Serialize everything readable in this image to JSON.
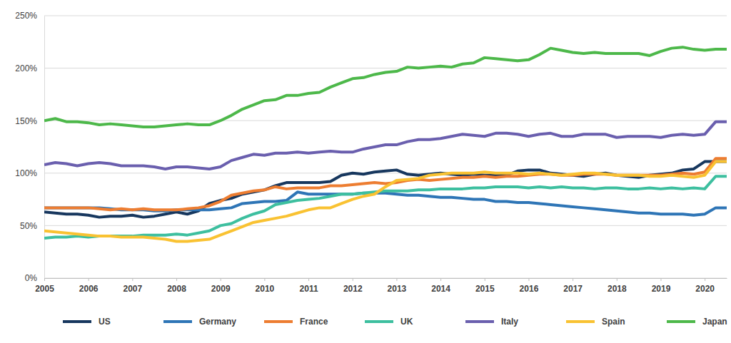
{
  "chart_data": {
    "type": "line",
    "x": [
      2005,
      2005.25,
      2005.5,
      2005.75,
      2006,
      2006.25,
      2006.5,
      2006.75,
      2007,
      2007.25,
      2007.5,
      2007.75,
      2008,
      2008.25,
      2008.5,
      2008.75,
      2009,
      2009.25,
      2009.5,
      2009.75,
      2010,
      2010.25,
      2010.5,
      2010.75,
      2011,
      2011.25,
      2011.5,
      2011.75,
      2012,
      2012.25,
      2012.5,
      2012.75,
      2013,
      2013.25,
      2013.5,
      2013.75,
      2014,
      2014.25,
      2014.5,
      2014.75,
      2015,
      2015.25,
      2015.5,
      2015.75,
      2016,
      2016.25,
      2016.5,
      2016.75,
      2017,
      2017.25,
      2017.5,
      2017.75,
      2018,
      2018.25,
      2018.5,
      2018.75,
      2019,
      2019.25,
      2019.5,
      2019.75,
      2020,
      2020.25,
      2020.5
    ],
    "series": [
      {
        "name": "US",
        "color": "#17375e",
        "values": [
          63,
          62,
          61,
          61,
          60,
          58,
          59,
          59,
          60,
          58,
          59,
          61,
          63,
          61,
          64,
          71,
          74,
          76,
          80,
          82,
          84,
          88,
          91,
          91,
          91,
          91,
          92,
          98,
          100,
          99,
          101,
          102,
          103,
          99,
          98,
          99,
          100,
          99,
          98,
          99,
          98,
          98,
          98,
          102,
          103,
          103,
          100,
          99,
          98,
          97,
          99,
          100,
          98,
          97,
          96,
          98,
          99,
          100,
          103,
          104,
          111,
          111,
          111
        ]
      },
      {
        "name": "Germany",
        "color": "#2e75b6",
        "values": [
          67,
          67,
          67,
          67,
          67,
          67,
          66,
          65,
          65,
          65,
          64,
          64,
          65,
          65,
          65,
          65,
          66,
          67,
          71,
          72,
          73,
          73,
          74,
          82,
          80,
          80,
          80,
          80,
          80,
          81,
          81,
          81,
          80,
          79,
          79,
          78,
          77,
          77,
          76,
          75,
          75,
          73,
          73,
          72,
          72,
          71,
          70,
          69,
          68,
          67,
          66,
          65,
          64,
          63,
          62,
          62,
          61,
          61,
          61,
          60,
          61,
          67,
          67
        ]
      },
      {
        "name": "France",
        "color": "#ed7d31",
        "values": [
          67,
          67,
          67,
          67,
          67,
          66,
          65,
          66,
          65,
          66,
          65,
          65,
          65,
          66,
          67,
          69,
          73,
          79,
          81,
          83,
          84,
          87,
          85,
          86,
          86,
          86,
          88,
          88,
          89,
          90,
          91,
          90,
          91,
          93,
          94,
          93,
          94,
          95,
          96,
          96,
          97,
          96,
          97,
          97,
          98,
          99,
          99,
          98,
          98,
          99,
          99,
          99,
          98,
          98,
          98,
          98,
          98,
          99,
          100,
          99,
          101,
          114,
          114
        ]
      },
      {
        "name": "UK",
        "color": "#3dbf9f",
        "values": [
          38,
          39,
          39,
          40,
          39,
          40,
          40,
          40,
          40,
          41,
          41,
          41,
          42,
          41,
          43,
          45,
          50,
          52,
          57,
          61,
          64,
          70,
          72,
          74,
          75,
          76,
          78,
          80,
          80,
          81,
          82,
          83,
          83,
          83,
          84,
          84,
          85,
          85,
          85,
          86,
          86,
          87,
          87,
          87,
          86,
          87,
          86,
          87,
          86,
          86,
          85,
          86,
          86,
          85,
          85,
          86,
          85,
          86,
          85,
          86,
          85,
          97,
          97
        ]
      },
      {
        "name": "Italy",
        "color": "#6a5fae",
        "values": [
          108,
          110,
          109,
          107,
          109,
          110,
          109,
          107,
          107,
          107,
          106,
          104,
          106,
          106,
          105,
          104,
          106,
          112,
          115,
          118,
          117,
          119,
          119,
          120,
          119,
          120,
          121,
          120,
          120,
          123,
          125,
          127,
          127,
          130,
          132,
          132,
          133,
          135,
          137,
          136,
          135,
          138,
          138,
          137,
          135,
          137,
          138,
          135,
          135,
          137,
          137,
          137,
          134,
          135,
          135,
          135,
          134,
          136,
          137,
          136,
          137,
          149,
          149
        ]
      },
      {
        "name": "Spain",
        "color": "#f9c232",
        "values": [
          45,
          44,
          43,
          42,
          41,
          40,
          40,
          39,
          39,
          39,
          38,
          37,
          35,
          35,
          36,
          37,
          41,
          45,
          49,
          53,
          55,
          57,
          59,
          62,
          65,
          67,
          67,
          71,
          75,
          78,
          80,
          87,
          93,
          94,
          95,
          98,
          99,
          100,
          100,
          100,
          101,
          100,
          100,
          100,
          99,
          100,
          99,
          98,
          99,
          100,
          100,
          99,
          98,
          98,
          98,
          97,
          97,
          98,
          97,
          96,
          98,
          111,
          111
        ]
      },
      {
        "name": "Japan",
        "color": "#4db84a",
        "values": [
          150,
          152,
          149,
          149,
          148,
          146,
          147,
          146,
          145,
          144,
          144,
          145,
          146,
          147,
          146,
          146,
          150,
          155,
          161,
          165,
          169,
          170,
          174,
          174,
          176,
          177,
          182,
          186,
          190,
          191,
          194,
          196,
          197,
          201,
          200,
          201,
          202,
          201,
          204,
          205,
          210,
          209,
          208,
          207,
          208,
          213,
          219,
          217,
          215,
          214,
          215,
          214,
          214,
          214,
          214,
          212,
          216,
          219,
          220,
          218,
          217,
          218,
          218
        ]
      }
    ],
    "xlim": [
      2005,
      2020.5
    ],
    "xticks": [
      2005,
      2006,
      2007,
      2008,
      2009,
      2010,
      2011,
      2012,
      2013,
      2014,
      2015,
      2016,
      2017,
      2018,
      2019,
      2020
    ],
    "ylim": [
      0,
      250
    ],
    "yticks": [
      {
        "value": 0,
        "label": "0%"
      },
      {
        "value": 50,
        "label": "50%"
      },
      {
        "value": 100,
        "label": "100%"
      },
      {
        "value": 150,
        "label": "150%"
      },
      {
        "value": 200,
        "label": "200%"
      },
      {
        "value": 250,
        "label": "250%"
      }
    ],
    "grid": true,
    "legend": "bottom"
  }
}
